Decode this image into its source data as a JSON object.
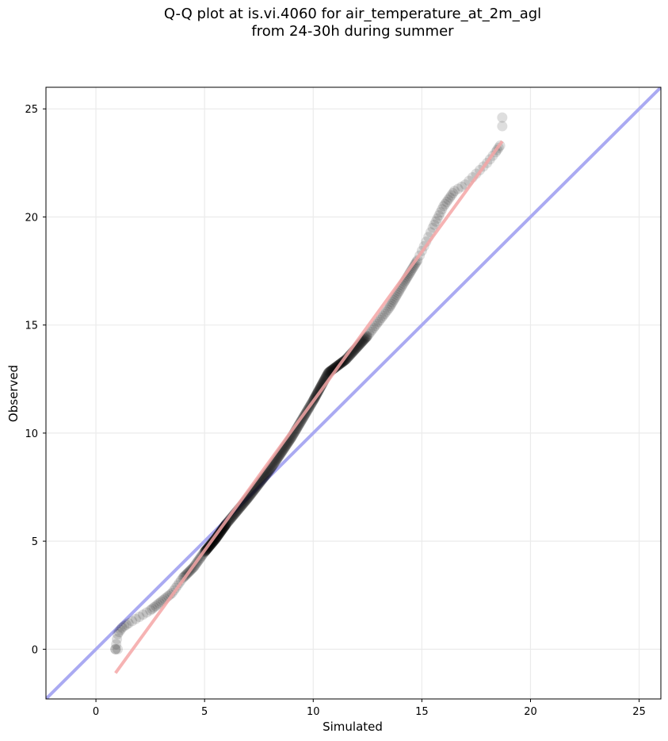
{
  "chart_data": {
    "type": "scatter",
    "title_line1": "Q-Q plot at is.vi.4060 for air_temperature_at_2m_agl",
    "title_line2": "from 24-30h during summer",
    "xlabel": "Simulated",
    "ylabel": "Observed",
    "xlim": [
      -2.3,
      26
    ],
    "ylim": [
      -2.3,
      26
    ],
    "xticks": [
      "0",
      "5",
      "10",
      "15",
      "20",
      "25"
    ],
    "yticks": [
      "0",
      "5",
      "10",
      "15",
      "20",
      "25"
    ],
    "grid": true,
    "reference_line": {
      "from": [
        -2.3,
        -2.3
      ],
      "to": [
        26,
        26
      ],
      "color": "#aaaaf2"
    },
    "fit_line": {
      "from": [
        0.9,
        -1.1
      ],
      "to": [
        18.7,
        23.5
      ],
      "color": "#f4a6a6"
    },
    "quantile_anchors": [
      [
        0.9,
        0.0
      ],
      [
        1.0,
        0.7
      ],
      [
        1.2,
        1.0
      ],
      [
        1.5,
        1.2
      ],
      [
        2.0,
        1.5
      ],
      [
        2.5,
        1.8
      ],
      [
        3.0,
        2.2
      ],
      [
        3.5,
        2.6
      ],
      [
        4.0,
        3.3
      ],
      [
        4.5,
        3.8
      ],
      [
        5.0,
        4.5
      ],
      [
        5.5,
        5.1
      ],
      [
        6.0,
        5.8
      ],
      [
        7.0,
        7.0
      ],
      [
        8.0,
        8.3
      ],
      [
        9.0,
        9.8
      ],
      [
        10.0,
        11.5
      ],
      [
        10.7,
        12.8
      ],
      [
        11.5,
        13.4
      ],
      [
        12.5,
        14.5
      ],
      [
        13.5,
        15.8
      ],
      [
        14.2,
        17.0
      ],
      [
        14.8,
        18.0
      ],
      [
        15.5,
        19.5
      ],
      [
        16.0,
        20.5
      ],
      [
        16.5,
        21.2
      ],
      [
        17.0,
        21.5
      ],
      [
        17.5,
        22.0
      ],
      [
        18.0,
        22.5
      ],
      [
        18.4,
        23.0
      ],
      [
        18.6,
        23.3
      ]
    ],
    "outlier_points": [
      [
        18.7,
        24.2
      ],
      [
        18.7,
        24.6
      ],
      [
        0.9,
        0.0
      ],
      [
        1.0,
        0.0
      ]
    ],
    "point_color": "#000000",
    "point_opacity": 0.13
  }
}
